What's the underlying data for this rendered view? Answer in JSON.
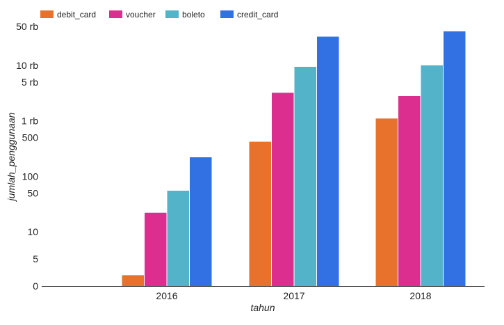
{
  "chart_data": {
    "type": "bar",
    "title": "",
    "xlabel": "tahun",
    "ylabel": "jumlah_penggunaan",
    "y_scale": "log",
    "y_ticks": [
      {
        "value": 0,
        "label": "0"
      },
      {
        "value": 5,
        "label": "5"
      },
      {
        "value": 10,
        "label": "10"
      },
      {
        "value": 50,
        "label": "50"
      },
      {
        "value": 100,
        "label": "100"
      },
      {
        "value": 500,
        "label": "500"
      },
      {
        "value": 1000,
        "label": "1 rb"
      },
      {
        "value": 5000,
        "label": "5 rb"
      },
      {
        "value": 10000,
        "label": "10 rb"
      },
      {
        "value": 50000,
        "label": "50 rb"
      }
    ],
    "categories": [
      "2016",
      "2017",
      "2018"
    ],
    "series": [
      {
        "name": "debit_card",
        "color": "#e8722c",
        "values": [
          2,
          420,
          1100
        ]
      },
      {
        "name": "voucher",
        "color": "#db2e8f",
        "values": [
          22,
          3200,
          2800
        ]
      },
      {
        "name": "boleto",
        "color": "#52b3c9",
        "values": [
          55,
          9400,
          10000
        ]
      },
      {
        "name": "credit_card",
        "color": "#3171e4",
        "values": [
          220,
          33000,
          41000
        ]
      }
    ],
    "legend_position": "top-left",
    "grid": false
  }
}
